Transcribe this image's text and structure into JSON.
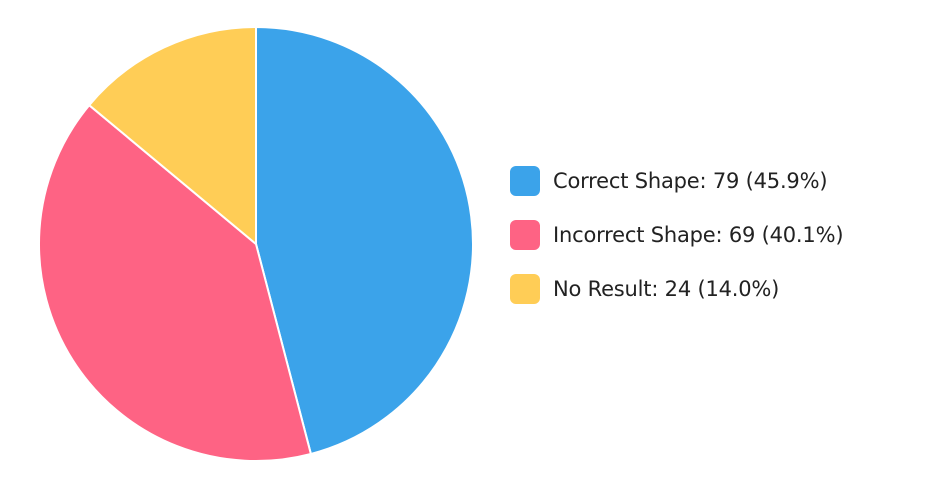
{
  "chart_data": {
    "type": "pie",
    "slices": [
      {
        "label": "Correct Shape",
        "value": 79,
        "percent": "45.9%",
        "color": "#3ba3ea",
        "legend_text": "Correct Shape: 79 (45.9%)"
      },
      {
        "label": "Incorrect Shape",
        "value": 69,
        "percent": "40.1%",
        "color": "#fe6384",
        "legend_text": "Incorrect Shape: 69 (40.1%)"
      },
      {
        "label": "No Result",
        "value": 24,
        "percent": "14.0%",
        "color": "#ffcd56",
        "legend_text": "No Result: 24 (14.0%)"
      }
    ],
    "legend_position": "right",
    "slice_border_color": "#ffffff"
  }
}
